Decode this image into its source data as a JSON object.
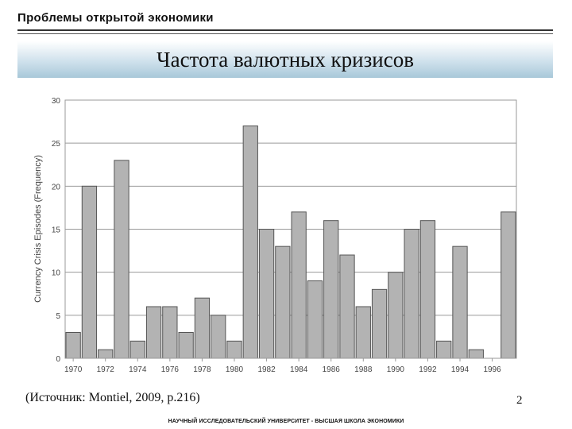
{
  "header": {
    "title": "Проблемы открытой экономики"
  },
  "banner": {
    "title": "Частота валютных кризисов"
  },
  "source": "(Источник: Montiel, 2009, p.216)",
  "page_number": "2",
  "footer": "НАУЧНЫЙ ИССЛЕДОВАТЕЛЬСКИЙ УНИВЕРСИТЕТ - ВЫСШАЯ ШКОЛА ЭКОНОМИКИ",
  "colors": {
    "bar_fill": "#b3b3b3",
    "bar_stroke": "#555555",
    "grid": "#9a9a9a",
    "banner_accent": "#a8c8d9"
  },
  "chart_data": {
    "type": "bar",
    "title": "",
    "xlabel": "",
    "ylabel": "Currency Crisis Episodes (Frequency)",
    "ylim": [
      0,
      30
    ],
    "yticks": [
      0,
      5,
      10,
      15,
      20,
      25,
      30
    ],
    "grid": true,
    "categories": [
      1970,
      1971,
      1972,
      1973,
      1974,
      1975,
      1976,
      1977,
      1978,
      1979,
      1980,
      1981,
      1982,
      1983,
      1984,
      1985,
      1986,
      1987,
      1988,
      1989,
      1990,
      1991,
      1992,
      1993,
      1994,
      1995,
      1996,
      1997
    ],
    "values": [
      3,
      20,
      1,
      23,
      2,
      6,
      6,
      3,
      7,
      5,
      2,
      27,
      15,
      13,
      17,
      9,
      16,
      12,
      6,
      8,
      10,
      15,
      16,
      2,
      13,
      1,
      0,
      17
    ],
    "xtick_labels": [
      "1970",
      "1972",
      "1974",
      "1976",
      "1978",
      "1980",
      "1982",
      "1984",
      "1986",
      "1988",
      "1990",
      "1992",
      "1994",
      "1996"
    ]
  }
}
